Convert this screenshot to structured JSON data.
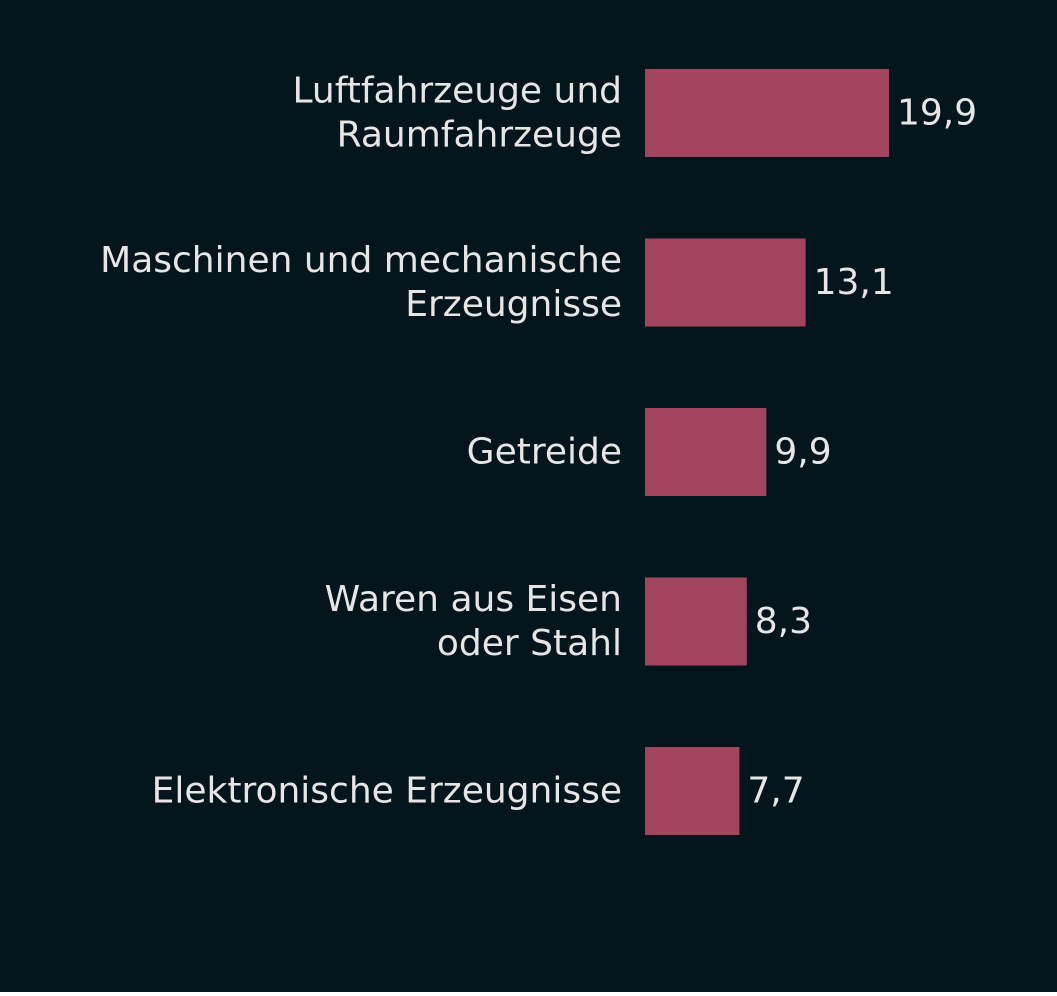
{
  "chart_data": {
    "type": "bar",
    "orientation": "horizontal",
    "categories": [
      [
        "Luftfahrzeuge und",
        "Raumfahrzeuge"
      ],
      [
        "Maschinen und mechanische",
        "Erzeugnisse"
      ],
      [
        "Getreide"
      ],
      [
        "Waren aus Eisen",
        "oder Stahl"
      ],
      [
        "Elektronische Erzeugnisse"
      ]
    ],
    "values": [
      19.9,
      13.1,
      9.9,
      8.3,
      7.7
    ],
    "value_labels": [
      "19,9",
      "13,1",
      "9,9",
      "8,3",
      "7,7"
    ],
    "title": "",
    "xlabel": "",
    "ylabel": "",
    "grid": false,
    "colors": {
      "background": "#04161c",
      "bar": "#a3445f",
      "text": "#e6e6e6"
    }
  }
}
